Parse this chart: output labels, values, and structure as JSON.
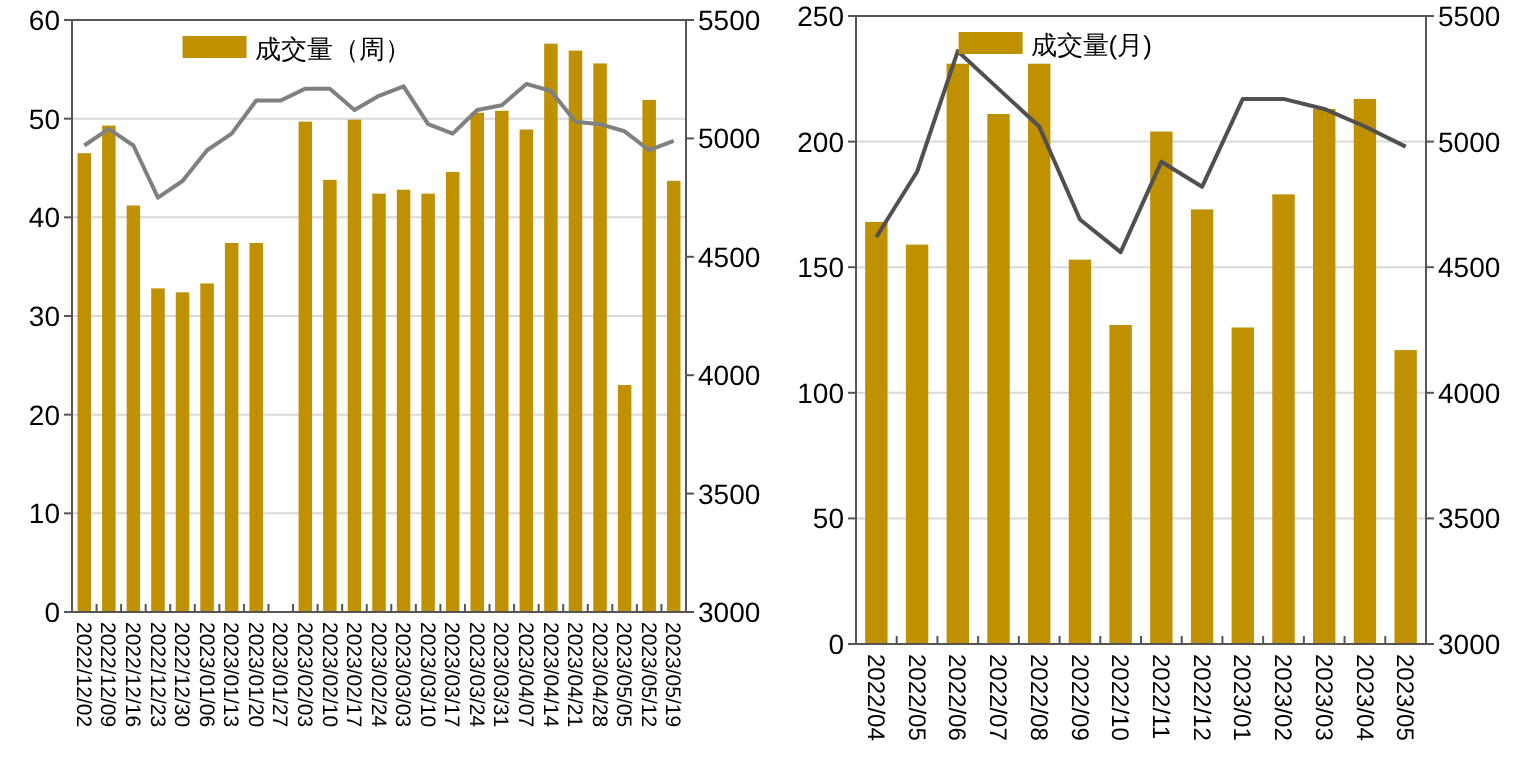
{
  "chart_data": [
    {
      "type": "bar",
      "categories": [
        "2022/12/02",
        "2022/12/09",
        "2022/12/16",
        "2022/12/23",
        "2022/12/30",
        "2023/01/06",
        "2023/01/13",
        "2023/01/20",
        "2023/01/27",
        "2023/02/03",
        "2023/02/10",
        "2023/02/17",
        "2023/02/24",
        "2023/03/03",
        "2023/03/10",
        "2023/03/17",
        "2023/03/24",
        "2023/03/31",
        "2023/04/07",
        "2023/04/14",
        "2023/04/21",
        "2023/04/28",
        "2023/05/05",
        "2023/05/12",
        "2023/05/19"
      ],
      "series": [
        {
          "name": "成交量（周）",
          "color": "#bf9000",
          "values": [
            46.5,
            49.3,
            41.2,
            32.8,
            32.4,
            33.3,
            37.4,
            37.4,
            null,
            49.7,
            43.8,
            49.9,
            42.4,
            42.8,
            42.4,
            44.6,
            50.6,
            50.8,
            48.9,
            57.6,
            56.9,
            55.6,
            23,
            51.9,
            43.7
          ]
        },
        {
          "type": "line",
          "axis": "y2",
          "color": "#808080",
          "values": [
            4970,
            5040,
            4970,
            4750,
            4820,
            4950,
            5020,
            5160,
            5160,
            5210,
            5210,
            5120,
            5180,
            5220,
            5060,
            5020,
            5120,
            5140,
            5230,
            5200,
            5070,
            5060,
            5030,
            4950,
            4990
          ]
        }
      ],
      "ylim": [
        0,
        60
      ],
      "yticks": [
        0,
        10,
        20,
        30,
        40,
        50,
        60
      ],
      "y2lim": [
        3000,
        5500
      ],
      "y2ticks": [
        3000,
        3500,
        4000,
        4500,
        5000,
        5500
      ],
      "grid": "y",
      "legend": "top"
    },
    {
      "type": "bar",
      "categories": [
        "2022/04",
        "2022/05",
        "2022/06",
        "2022/07",
        "2022/08",
        "2022/09",
        "2022/10",
        "2022/11",
        "2022/12",
        "2023/01",
        "2023/02",
        "2023/03",
        "2023/04",
        "2023/05"
      ],
      "series": [
        {
          "name": "成交量(月)",
          "color": "#bf9000",
          "values": [
            168,
            159,
            231,
            211,
            231,
            153,
            127,
            204,
            173,
            126,
            179,
            213,
            217,
            117
          ]
        },
        {
          "type": "line",
          "axis": "y2",
          "color": "#505050",
          "values": [
            4620,
            4880,
            5360,
            5210,
            5060,
            4690,
            4560,
            4920,
            4820,
            5170,
            5170,
            5130,
            5060,
            4980
          ]
        }
      ],
      "ylim": [
        0,
        250
      ],
      "yticks": [
        0,
        50,
        100,
        150,
        200,
        250
      ],
      "y2lim": [
        3000,
        5500
      ],
      "y2ticks": [
        3000,
        3500,
        4000,
        4500,
        5000,
        5500
      ],
      "grid": "y",
      "legend": "top"
    }
  ]
}
